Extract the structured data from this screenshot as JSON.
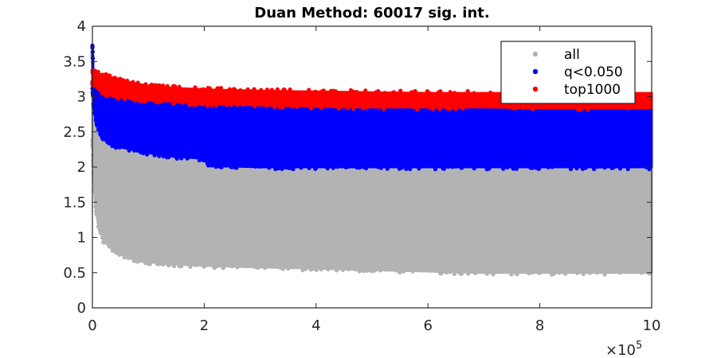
{
  "chart_data": {
    "type": "scatter",
    "title": "Duan Method: 60017 sig. int.",
    "xlabel": "",
    "ylabel": "",
    "xlim": [
      0,
      1000000
    ],
    "ylim": [
      0,
      4
    ],
    "x_ticks": [
      0,
      200000,
      400000,
      600000,
      800000,
      1000000
    ],
    "x_tick_labels": [
      "0",
      "2",
      "4",
      "6",
      "8",
      "10"
    ],
    "x_exponent_label": "×10",
    "x_exponent_power": "5",
    "y_ticks": [
      0,
      0.5,
      1,
      1.5,
      2,
      2.5,
      3,
      3.5,
      4
    ],
    "y_tick_labels": [
      "0",
      "0.5",
      "1",
      "1.5",
      "2",
      "2.5",
      "3",
      "3.5",
      "4"
    ],
    "legend_position": "top-right",
    "grid": false,
    "series": [
      {
        "name": "all",
        "color": "#b3b3b3",
        "envelope": {
          "x": [
            0,
            2000,
            5000,
            10000,
            20000,
            40000,
            70000,
            100000,
            150000,
            200000,
            300000,
            400000,
            500000,
            600000,
            700000,
            800000,
            900000,
            1000000
          ],
          "lower": [
            2.4,
            1.9,
            1.5,
            1.2,
            0.95,
            0.8,
            0.7,
            0.65,
            0.62,
            0.6,
            0.58,
            0.56,
            0.54,
            0.52,
            0.5,
            0.5,
            0.5,
            0.5
          ],
          "upper": [
            3.6,
            3.3,
            3.0,
            2.7,
            2.45,
            2.3,
            2.2,
            2.15,
            2.15,
            2.1,
            2.05,
            2.05,
            2.0,
            2.0,
            2.0,
            2.0,
            2.0,
            2.0
          ]
        }
      },
      {
        "name": "q<0.050",
        "color": "#0000ff",
        "envelope": {
          "x": [
            0,
            2000,
            5000,
            10000,
            20000,
            40000,
            70000,
            100000,
            150000,
            200000,
            210000,
            300000,
            400000,
            500000,
            600000,
            700000,
            800000,
            900000,
            1000000
          ],
          "lower": [
            3.1,
            2.9,
            2.7,
            2.55,
            2.4,
            2.3,
            2.25,
            2.2,
            2.15,
            2.12,
            2.02,
            2.0,
            2.0,
            2.0,
            2.0,
            2.0,
            2.0,
            2.0,
            2.0
          ],
          "upper": [
            3.72,
            3.3,
            3.3,
            3.25,
            3.15,
            3.05,
            3.0,
            2.98,
            2.95,
            2.92,
            2.9,
            2.88,
            2.86,
            2.85,
            2.85,
            2.85,
            2.84,
            2.84,
            2.84
          ]
        }
      },
      {
        "name": "top1000",
        "color": "#ff0000",
        "envelope": {
          "x": [
            0,
            10000,
            20000,
            40000,
            70000,
            100000,
            150000,
            200000,
            300000,
            400000,
            500000,
            600000,
            700000,
            800000,
            900000,
            1000000
          ],
          "lower": [
            3.2,
            3.15,
            3.05,
            3.0,
            2.98,
            2.95,
            2.93,
            2.9,
            2.88,
            2.86,
            2.85,
            2.85,
            2.85,
            2.84,
            2.84,
            2.84
          ],
          "upper": [
            3.35,
            3.33,
            3.3,
            3.25,
            3.2,
            3.15,
            3.12,
            3.1,
            3.08,
            3.07,
            3.06,
            3.05,
            3.05,
            3.05,
            3.05,
            3.05
          ]
        }
      }
    ]
  }
}
